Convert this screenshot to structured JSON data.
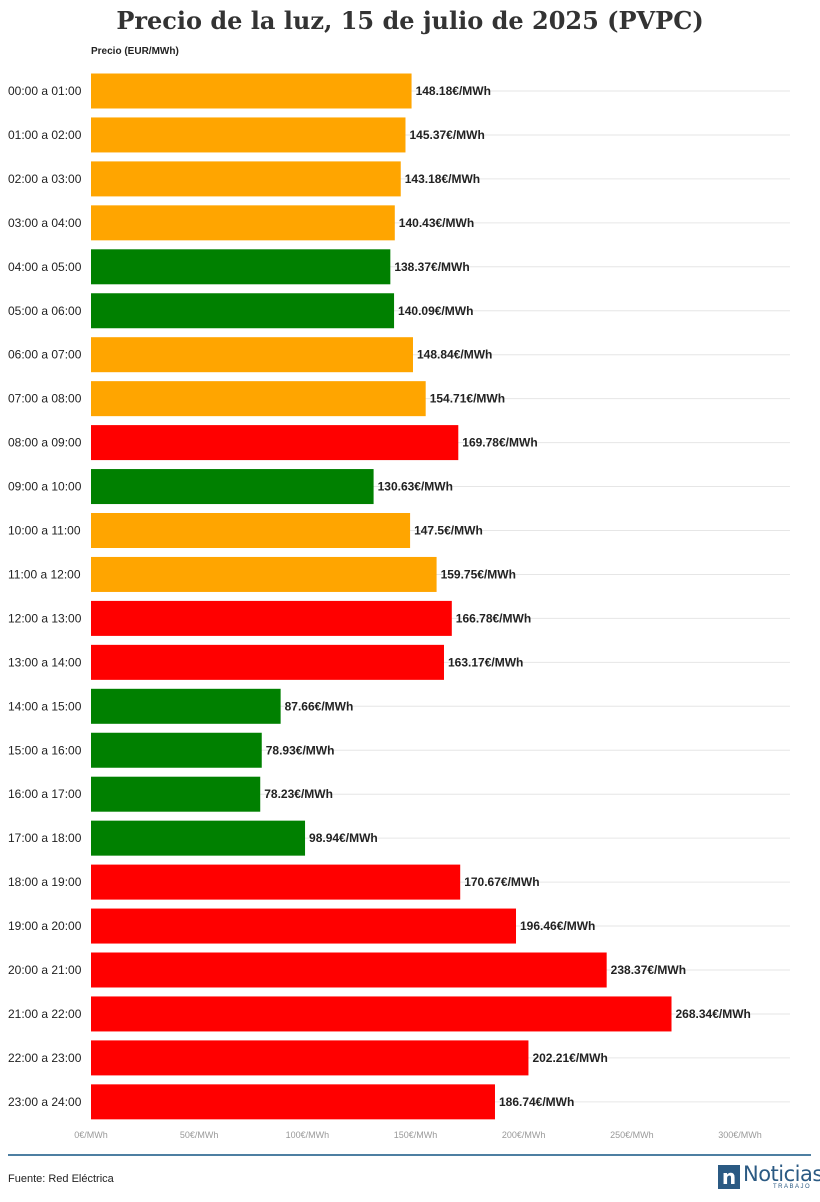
{
  "title": "Precio de la luz, 15 de julio de 2025 (PVPC)",
  "footer": {
    "source": "Fuente: Red Eléctrica",
    "logo_text": "Noticias",
    "logo_subtext": "TRABAJO",
    "logo_mark": "n"
  },
  "colors": {
    "high": "#ff0000",
    "mid": "#ffa500",
    "low": "#008000",
    "accent": "#2b5a83"
  },
  "chart_data": {
    "type": "bar",
    "orientation": "horizontal",
    "title": "Precio de la luz, 15 de julio de 2025 (PVPC)",
    "ylabel": "Precio (EUR/MWh)",
    "xlabel": "",
    "xlim": [
      0,
      300
    ],
    "xticks": [
      0,
      50,
      100,
      150,
      200,
      250,
      300
    ],
    "xtick_labels": [
      "0€/MWh",
      "50€/MWh",
      "100€/MWh",
      "150€/MWh",
      "200€/MWh",
      "250€/MWh",
      "300€/MWh"
    ],
    "grid": true,
    "categories": [
      "00:00 a 01:00",
      "01:00 a 02:00",
      "02:00 a 03:00",
      "03:00 a 04:00",
      "04:00 a 05:00",
      "05:00 a 06:00",
      "06:00 a 07:00",
      "07:00 a 08:00",
      "08:00 a 09:00",
      "09:00 a 10:00",
      "10:00 a 11:00",
      "11:00 a 12:00",
      "12:00 a 13:00",
      "13:00 a 14:00",
      "14:00 a 15:00",
      "15:00 a 16:00",
      "16:00 a 17:00",
      "17:00 a 18:00",
      "18:00 a 19:00",
      "19:00 a 20:00",
      "20:00 a 21:00",
      "21:00 a 22:00",
      "22:00 a 23:00",
      "23:00 a 24:00"
    ],
    "values": [
      148.18,
      145.37,
      143.18,
      140.43,
      138.37,
      140.09,
      148.84,
      154.71,
      169.78,
      130.63,
      147.5,
      159.75,
      166.78,
      163.17,
      87.66,
      78.93,
      78.23,
      98.94,
      170.67,
      196.46,
      238.37,
      268.34,
      202.21,
      186.74
    ],
    "value_labels": [
      "148.18€/MWh",
      "145.37€/MWh",
      "143.18€/MWh",
      "140.43€/MWh",
      "138.37€/MWh",
      "140.09€/MWh",
      "148.84€/MWh",
      "154.71€/MWh",
      "169.78€/MWh",
      "130.63€/MWh",
      "147.5€/MWh",
      "159.75€/MWh",
      "166.78€/MWh",
      "163.17€/MWh",
      "87.66€/MWh",
      "78.93€/MWh",
      "78.23€/MWh",
      "98.94€/MWh",
      "170.67€/MWh",
      "196.46€/MWh",
      "238.37€/MWh",
      "268.34€/MWh",
      "202.21€/MWh",
      "186.74€/MWh"
    ],
    "bar_levels": [
      "mid",
      "mid",
      "mid",
      "mid",
      "low",
      "low",
      "mid",
      "mid",
      "high",
      "low",
      "mid",
      "mid",
      "high",
      "high",
      "low",
      "low",
      "low",
      "low",
      "high",
      "high",
      "high",
      "high",
      "high",
      "high"
    ]
  }
}
